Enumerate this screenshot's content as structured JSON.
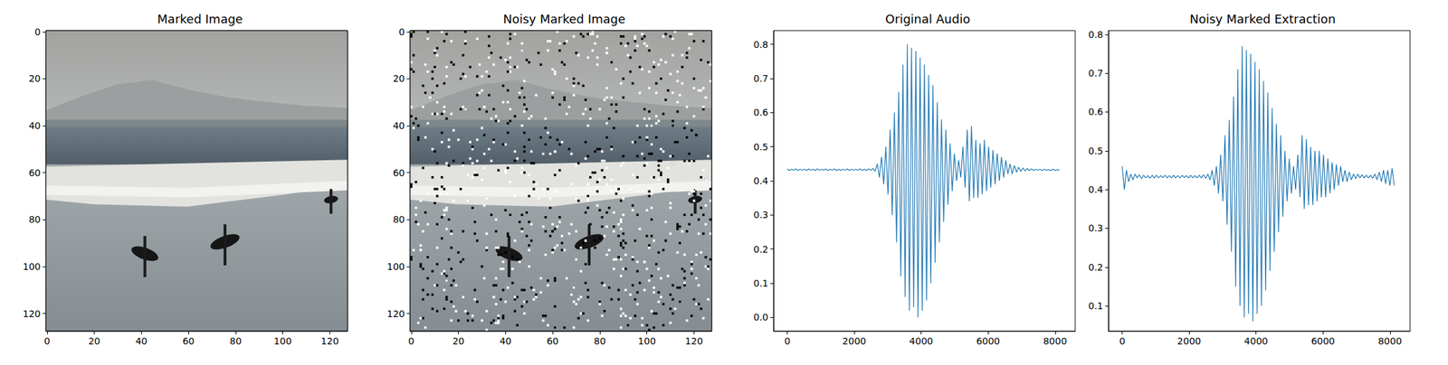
{
  "chart_data": [
    {
      "type": "image",
      "title": "Marked Image",
      "xlim": [
        -0.5,
        127.5
      ],
      "ylim": [
        127.5,
        -0.5
      ],
      "xticks": [
        0,
        20,
        40,
        60,
        80,
        100,
        120
      ],
      "yticks": [
        0,
        20,
        40,
        60,
        80,
        100,
        120
      ]
    },
    {
      "type": "image",
      "title": "Noisy Marked Image",
      "xlim": [
        -0.5,
        127.5
      ],
      "ylim": [
        127.5,
        -0.5
      ],
      "xticks": [
        0,
        20,
        40,
        60,
        80,
        100,
        120
      ],
      "yticks": [
        0,
        20,
        40,
        60,
        80,
        100,
        120
      ]
    },
    {
      "type": "line",
      "title": "Original Audio",
      "color": "#1f77b4",
      "x": [
        0,
        64,
        128,
        192,
        256,
        320,
        384,
        448,
        512,
        576,
        640,
        704,
        768,
        832,
        896,
        960,
        1024,
        1088,
        1152,
        1216,
        1280,
        1344,
        1408,
        1472,
        1536,
        1600,
        1664,
        1728,
        1792,
        1856,
        1920,
        1984,
        2048,
        2112,
        2176,
        2240,
        2304,
        2368,
        2432,
        2496,
        2560,
        2624,
        2688,
        2752,
        2816,
        2880,
        2944,
        3008,
        3072,
        3136,
        3200,
        3264,
        3328,
        3392,
        3456,
        3520,
        3584,
        3648,
        3712,
        3776,
        3840,
        3904,
        3968,
        4032,
        4096,
        4160,
        4224,
        4288,
        4352,
        4416,
        4480,
        4544,
        4608,
        4672,
        4736,
        4800,
        4864,
        4928,
        4992,
        5056,
        5120,
        5184,
        5248,
        5312,
        5376,
        5440,
        5504,
        5568,
        5632,
        5696,
        5760,
        5824,
        5888,
        5952,
        6016,
        6080,
        6144,
        6208,
        6272,
        6336,
        6400,
        6464,
        6528,
        6592,
        6656,
        6720,
        6784,
        6848,
        6912,
        6976,
        7040,
        7104,
        7168,
        7232,
        7296,
        7360,
        7424,
        7488,
        7552,
        7616,
        7680,
        7744,
        7808,
        7872,
        7936,
        8000,
        8064,
        8128
      ],
      "values": [
        0.435,
        0.43,
        0.434,
        0.431,
        0.435,
        0.43,
        0.434,
        0.431,
        0.434,
        0.43,
        0.435,
        0.431,
        0.434,
        0.43,
        0.435,
        0.431,
        0.434,
        0.431,
        0.435,
        0.43,
        0.434,
        0.431,
        0.435,
        0.43,
        0.434,
        0.43,
        0.434,
        0.431,
        0.435,
        0.43,
        0.434,
        0.431,
        0.434,
        0.431,
        0.435,
        0.43,
        0.434,
        0.43,
        0.435,
        0.431,
        0.436,
        0.428,
        0.45,
        0.41,
        0.47,
        0.39,
        0.5,
        0.36,
        0.55,
        0.3,
        0.6,
        0.22,
        0.66,
        0.12,
        0.74,
        0.06,
        0.8,
        0.02,
        0.79,
        0.03,
        0.78,
        0.0,
        0.76,
        0.02,
        0.74,
        0.05,
        0.71,
        0.1,
        0.68,
        0.16,
        0.63,
        0.22,
        0.58,
        0.28,
        0.55,
        0.33,
        0.51,
        0.37,
        0.48,
        0.4,
        0.46,
        0.41,
        0.5,
        0.38,
        0.55,
        0.34,
        0.56,
        0.35,
        0.52,
        0.35,
        0.51,
        0.36,
        0.52,
        0.37,
        0.5,
        0.38,
        0.49,
        0.39,
        0.48,
        0.4,
        0.47,
        0.41,
        0.46,
        0.42,
        0.45,
        0.42,
        0.445,
        0.425,
        0.44,
        0.428,
        0.438,
        0.429,
        0.436,
        0.43,
        0.435,
        0.43,
        0.434,
        0.431,
        0.434,
        0.43,
        0.434,
        0.431,
        0.433,
        0.43,
        0.434,
        0.43,
        0.433,
        0.431
      ],
      "xlim": [
        -409.6,
        8601.6
      ],
      "ylim": [
        -0.04,
        0.84
      ],
      "xticks": [
        0,
        2000,
        4000,
        6000,
        8000
      ],
      "yticks": [
        {
          "value": 0,
          "label": "0.0"
        },
        0.1,
        0.2,
        0.3,
        0.4,
        0.5,
        0.6,
        0.7,
        0.8
      ]
    },
    {
      "type": "line",
      "title": "Noisy Marked Extraction",
      "color": "#1f77b4",
      "x": [
        0,
        64,
        128,
        192,
        256,
        320,
        384,
        448,
        512,
        576,
        640,
        704,
        768,
        832,
        896,
        960,
        1024,
        1088,
        1152,
        1216,
        1280,
        1344,
        1408,
        1472,
        1536,
        1600,
        1664,
        1728,
        1792,
        1856,
        1920,
        1984,
        2048,
        2112,
        2176,
        2240,
        2304,
        2368,
        2432,
        2496,
        2560,
        2624,
        2688,
        2752,
        2816,
        2880,
        2944,
        3008,
        3072,
        3136,
        3200,
        3264,
        3328,
        3392,
        3456,
        3520,
        3584,
        3648,
        3712,
        3776,
        3840,
        3904,
        3968,
        4032,
        4096,
        4160,
        4224,
        4288,
        4352,
        4416,
        4480,
        4544,
        4608,
        4672,
        4736,
        4800,
        4864,
        4928,
        4992,
        5056,
        5120,
        5184,
        5248,
        5312,
        5376,
        5440,
        5504,
        5568,
        5632,
        5696,
        5760,
        5824,
        5888,
        5952,
        6016,
        6080,
        6144,
        6208,
        6272,
        6336,
        6400,
        6464,
        6528,
        6592,
        6656,
        6720,
        6784,
        6848,
        6912,
        6976,
        7040,
        7104,
        7168,
        7232,
        7296,
        7360,
        7424,
        7488,
        7552,
        7616,
        7680,
        7744,
        7808,
        7872,
        7936,
        8000,
        8064,
        8128
      ],
      "values": [
        0.46,
        0.4,
        0.45,
        0.42,
        0.44,
        0.425,
        0.44,
        0.43,
        0.438,
        0.428,
        0.437,
        0.43,
        0.436,
        0.429,
        0.437,
        0.43,
        0.437,
        0.43,
        0.436,
        0.431,
        0.437,
        0.43,
        0.436,
        0.43,
        0.437,
        0.43,
        0.436,
        0.43,
        0.437,
        0.431,
        0.436,
        0.43,
        0.437,
        0.43,
        0.436,
        0.43,
        0.437,
        0.43,
        0.438,
        0.429,
        0.44,
        0.425,
        0.45,
        0.41,
        0.46,
        0.39,
        0.49,
        0.37,
        0.54,
        0.31,
        0.58,
        0.24,
        0.64,
        0.15,
        0.71,
        0.1,
        0.77,
        0.07,
        0.76,
        0.08,
        0.75,
        0.06,
        0.73,
        0.08,
        0.71,
        0.1,
        0.68,
        0.14,
        0.65,
        0.19,
        0.61,
        0.24,
        0.57,
        0.29,
        0.54,
        0.33,
        0.5,
        0.37,
        0.48,
        0.39,
        0.46,
        0.4,
        0.49,
        0.38,
        0.54,
        0.35,
        0.53,
        0.36,
        0.51,
        0.36,
        0.5,
        0.37,
        0.5,
        0.38,
        0.49,
        0.38,
        0.48,
        0.39,
        0.47,
        0.4,
        0.465,
        0.41,
        0.46,
        0.42,
        0.45,
        0.42,
        0.445,
        0.425,
        0.44,
        0.428,
        0.44,
        0.43,
        0.438,
        0.43,
        0.437,
        0.43,
        0.437,
        0.429,
        0.44,
        0.425,
        0.445,
        0.42,
        0.45,
        0.415,
        0.45,
        0.41,
        0.455,
        0.41
      ],
      "xlim": [
        -409.6,
        8601.6
      ],
      "ylim": [
        0.035,
        0.81
      ],
      "xticks": [
        0,
        2000,
        4000,
        6000,
        8000
      ],
      "yticks": [
        0.1,
        0.2,
        0.3,
        0.4,
        0.5,
        0.6,
        0.7,
        0.8
      ]
    }
  ]
}
